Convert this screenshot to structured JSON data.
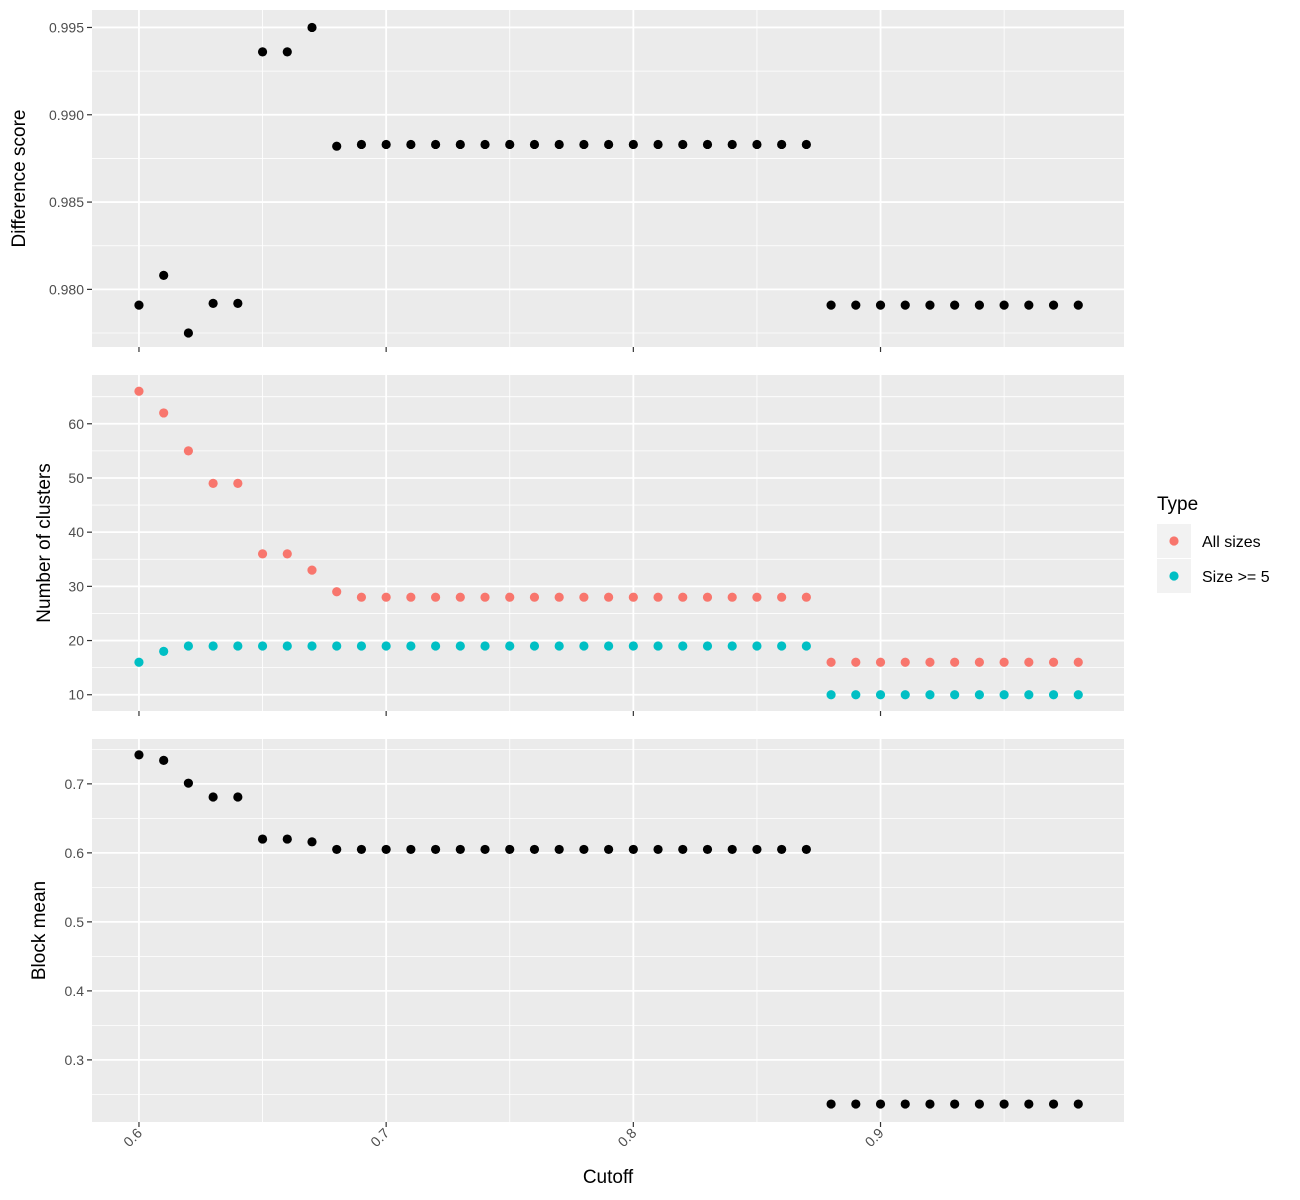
{
  "chart_data": [
    {
      "type": "scatter",
      "ylabel": "Difference score",
      "xlim": [
        0.581,
        0.9985
      ],
      "ylim": [
        0.9767,
        0.996
      ],
      "yticks": [
        0.98,
        0.985,
        0.99,
        0.995
      ],
      "ytick_labels": [
        "0.980",
        "0.985",
        "0.990",
        "0.995"
      ],
      "grid": true,
      "series": [
        {
          "color": "#000000",
          "points": [
            [
              0.6,
              0.9791
            ],
            [
              0.61,
              0.9808
            ],
            [
              0.62,
              0.9775
            ],
            [
              0.63,
              0.9792
            ],
            [
              0.64,
              0.9792
            ],
            [
              0.65,
              0.9936
            ],
            [
              0.66,
              0.9936
            ],
            [
              0.67,
              0.995
            ],
            [
              0.68,
              0.9882
            ],
            [
              0.69,
              0.9883
            ],
            [
              0.7,
              0.9883
            ],
            [
              0.71,
              0.9883
            ],
            [
              0.72,
              0.9883
            ],
            [
              0.73,
              0.9883
            ],
            [
              0.74,
              0.9883
            ],
            [
              0.75,
              0.9883
            ],
            [
              0.76,
              0.9883
            ],
            [
              0.77,
              0.9883
            ],
            [
              0.78,
              0.9883
            ],
            [
              0.79,
              0.9883
            ],
            [
              0.8,
              0.9883
            ],
            [
              0.81,
              0.9883
            ],
            [
              0.82,
              0.9883
            ],
            [
              0.83,
              0.9883
            ],
            [
              0.84,
              0.9883
            ],
            [
              0.85,
              0.9883
            ],
            [
              0.86,
              0.9883
            ],
            [
              0.87,
              0.9883
            ],
            [
              0.88,
              0.9791
            ],
            [
              0.89,
              0.9791
            ],
            [
              0.9,
              0.9791
            ],
            [
              0.91,
              0.9791
            ],
            [
              0.92,
              0.9791
            ],
            [
              0.93,
              0.9791
            ],
            [
              0.94,
              0.9791
            ],
            [
              0.95,
              0.9791
            ],
            [
              0.96,
              0.9791
            ],
            [
              0.97,
              0.9791
            ],
            [
              0.98,
              0.9791
            ]
          ]
        }
      ]
    },
    {
      "type": "scatter",
      "ylabel": "Number of clusters",
      "xlim": [
        0.581,
        0.9985
      ],
      "ylim": [
        7,
        69
      ],
      "yticks": [
        10,
        20,
        30,
        40,
        50,
        60
      ],
      "ytick_labels": [
        "10",
        "20",
        "30",
        "40",
        "50",
        "60"
      ],
      "grid": true,
      "legend": {
        "title": "Type",
        "placement": "right",
        "entries": [
          {
            "label": "All sizes",
            "color": "#F8766D"
          },
          {
            "label": "Size >= 5",
            "color": "#00BFC4"
          }
        ]
      },
      "series": [
        {
          "name": "All sizes",
          "color": "#F8766D",
          "points": [
            [
              0.6,
              66
            ],
            [
              0.61,
              62
            ],
            [
              0.62,
              55
            ],
            [
              0.63,
              49
            ],
            [
              0.64,
              49
            ],
            [
              0.65,
              36
            ],
            [
              0.66,
              36
            ],
            [
              0.67,
              33
            ],
            [
              0.68,
              29
            ],
            [
              0.69,
              28
            ],
            [
              0.7,
              28
            ],
            [
              0.71,
              28
            ],
            [
              0.72,
              28
            ],
            [
              0.73,
              28
            ],
            [
              0.74,
              28
            ],
            [
              0.75,
              28
            ],
            [
              0.76,
              28
            ],
            [
              0.77,
              28
            ],
            [
              0.78,
              28
            ],
            [
              0.79,
              28
            ],
            [
              0.8,
              28
            ],
            [
              0.81,
              28
            ],
            [
              0.82,
              28
            ],
            [
              0.83,
              28
            ],
            [
              0.84,
              28
            ],
            [
              0.85,
              28
            ],
            [
              0.86,
              28
            ],
            [
              0.87,
              28
            ],
            [
              0.88,
              16
            ],
            [
              0.89,
              16
            ],
            [
              0.9,
              16
            ],
            [
              0.91,
              16
            ],
            [
              0.92,
              16
            ],
            [
              0.93,
              16
            ],
            [
              0.94,
              16
            ],
            [
              0.95,
              16
            ],
            [
              0.96,
              16
            ],
            [
              0.97,
              16
            ],
            [
              0.98,
              16
            ]
          ]
        },
        {
          "name": "Size >= 5",
          "color": "#00BFC4",
          "points": [
            [
              0.6,
              16
            ],
            [
              0.61,
              18
            ],
            [
              0.62,
              19
            ],
            [
              0.63,
              19
            ],
            [
              0.64,
              19
            ],
            [
              0.65,
              19
            ],
            [
              0.66,
              19
            ],
            [
              0.67,
              19
            ],
            [
              0.68,
              19
            ],
            [
              0.69,
              19
            ],
            [
              0.7,
              19
            ],
            [
              0.71,
              19
            ],
            [
              0.72,
              19
            ],
            [
              0.73,
              19
            ],
            [
              0.74,
              19
            ],
            [
              0.75,
              19
            ],
            [
              0.76,
              19
            ],
            [
              0.77,
              19
            ],
            [
              0.78,
              19
            ],
            [
              0.79,
              19
            ],
            [
              0.8,
              19
            ],
            [
              0.81,
              19
            ],
            [
              0.82,
              19
            ],
            [
              0.83,
              19
            ],
            [
              0.84,
              19
            ],
            [
              0.85,
              19
            ],
            [
              0.86,
              19
            ],
            [
              0.87,
              19
            ],
            [
              0.88,
              10
            ],
            [
              0.89,
              10
            ],
            [
              0.9,
              10
            ],
            [
              0.91,
              10
            ],
            [
              0.92,
              10
            ],
            [
              0.93,
              10
            ],
            [
              0.94,
              10
            ],
            [
              0.95,
              10
            ],
            [
              0.96,
              10
            ],
            [
              0.97,
              10
            ],
            [
              0.98,
              10
            ]
          ]
        }
      ]
    },
    {
      "type": "scatter",
      "xlabel": "Cutoff",
      "ylabel": "Block mean",
      "xlim": [
        0.581,
        0.9985
      ],
      "ylim": [
        0.21,
        0.765
      ],
      "xticks": [
        0.6,
        0.7,
        0.8,
        0.9
      ],
      "xtick_labels": [
        "0.6",
        "0.7",
        "0.8",
        "0.9"
      ],
      "yticks": [
        0.3,
        0.4,
        0.5,
        0.6,
        0.7
      ],
      "ytick_labels": [
        "0.3",
        "0.4",
        "0.5",
        "0.6",
        "0.7"
      ],
      "grid": true,
      "series": [
        {
          "color": "#000000",
          "points": [
            [
              0.6,
              0.742
            ],
            [
              0.61,
              0.734
            ],
            [
              0.62,
              0.701
            ],
            [
              0.63,
              0.681
            ],
            [
              0.64,
              0.681
            ],
            [
              0.65,
              0.62
            ],
            [
              0.66,
              0.62
            ],
            [
              0.67,
              0.616
            ],
            [
              0.68,
              0.605
            ],
            [
              0.69,
              0.605
            ],
            [
              0.7,
              0.605
            ],
            [
              0.71,
              0.605
            ],
            [
              0.72,
              0.605
            ],
            [
              0.73,
              0.605
            ],
            [
              0.74,
              0.605
            ],
            [
              0.75,
              0.605
            ],
            [
              0.76,
              0.605
            ],
            [
              0.77,
              0.605
            ],
            [
              0.78,
              0.605
            ],
            [
              0.79,
              0.605
            ],
            [
              0.8,
              0.605
            ],
            [
              0.81,
              0.605
            ],
            [
              0.82,
              0.605
            ],
            [
              0.83,
              0.605
            ],
            [
              0.84,
              0.605
            ],
            [
              0.85,
              0.605
            ],
            [
              0.86,
              0.605
            ],
            [
              0.87,
              0.605
            ],
            [
              0.88,
              0.236
            ],
            [
              0.89,
              0.236
            ],
            [
              0.9,
              0.236
            ],
            [
              0.91,
              0.236
            ],
            [
              0.92,
              0.236
            ],
            [
              0.93,
              0.236
            ],
            [
              0.94,
              0.236
            ],
            [
              0.95,
              0.236
            ],
            [
              0.96,
              0.236
            ],
            [
              0.97,
              0.236
            ],
            [
              0.98,
              0.236
            ]
          ]
        }
      ]
    }
  ]
}
